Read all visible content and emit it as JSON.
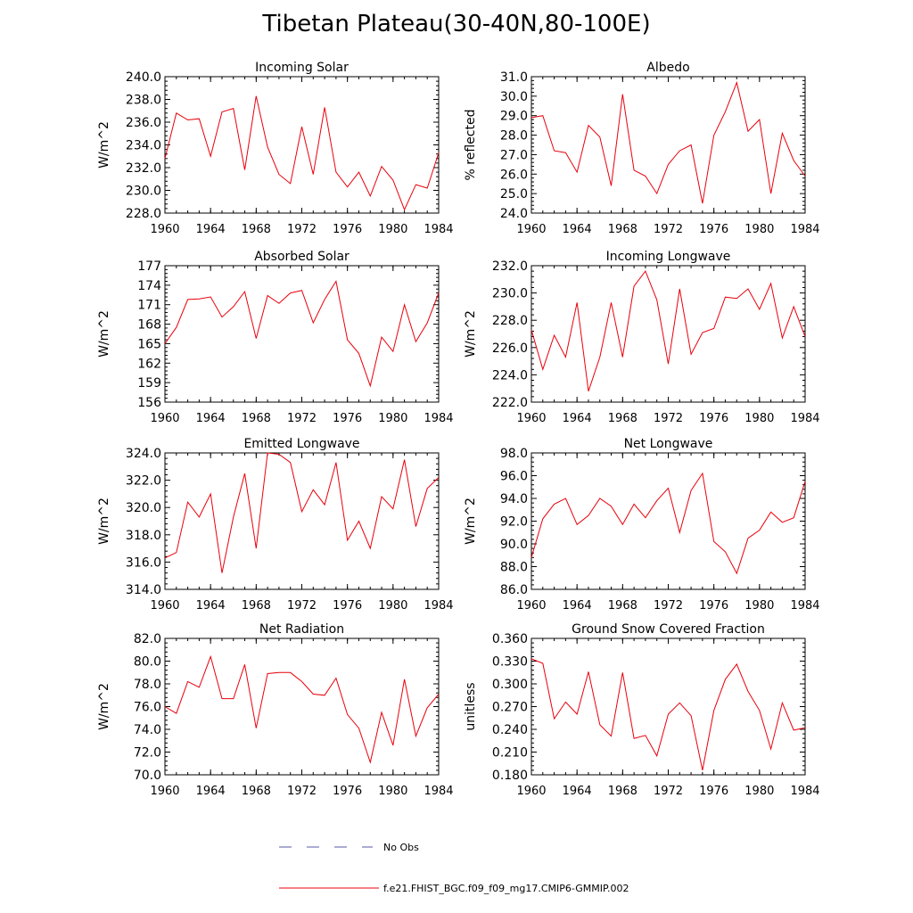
{
  "figure": {
    "title": "Tibetan Plateau(30-40N,80-100E)",
    "line_color": "#e8000b",
    "obs_color": "#5a5aa8"
  },
  "legend": {
    "obs_label": "No Obs",
    "model_label": "f.e21.FHIST_BGC.f09_f09_mg17.CMIP6-GMMIP.002"
  },
  "chart_data": [
    {
      "type": "line",
      "title": "Incoming Solar",
      "ylabel": "W/m^2",
      "xlim": [
        1960,
        1984
      ],
      "xticks": [
        "1960",
        "1964",
        "1968",
        "1972",
        "1976",
        "1980",
        "1984"
      ],
      "ylim": [
        228,
        240
      ],
      "yticks": [
        "228.0",
        "230.0",
        "232.0",
        "234.0",
        "236.0",
        "238.0",
        "240.0"
      ],
      "x": [
        1960,
        1961,
        1962,
        1963,
        1964,
        1965,
        1966,
        1967,
        1968,
        1969,
        1970,
        1971,
        1972,
        1973,
        1974,
        1975,
        1976,
        1977,
        1978,
        1979,
        1980,
        1981,
        1982,
        1983,
        1984
      ],
      "values": [
        232.8,
        236.8,
        236.2,
        236.3,
        233.0,
        236.9,
        237.2,
        231.8,
        238.3,
        233.8,
        231.4,
        230.6,
        235.6,
        231.4,
        237.3,
        231.6,
        230.3,
        231.6,
        229.5,
        232.1,
        230.9,
        228.3,
        230.5,
        230.2,
        233.3
      ]
    },
    {
      "type": "line",
      "title": "Albedo",
      "ylabel": "% reflected",
      "xlim": [
        1960,
        1984
      ],
      "xticks": [
        "1960",
        "1964",
        "1968",
        "1972",
        "1976",
        "1980",
        "1984"
      ],
      "ylim": [
        24,
        31
      ],
      "yticks": [
        "24.0",
        "25.0",
        "26.0",
        "27.0",
        "28.0",
        "29.0",
        "30.0",
        "31.0"
      ],
      "x": [
        1960,
        1961,
        1962,
        1963,
        1964,
        1965,
        1966,
        1967,
        1968,
        1969,
        1970,
        1971,
        1972,
        1973,
        1974,
        1975,
        1976,
        1977,
        1978,
        1979,
        1980,
        1981,
        1982,
        1983,
        1984
      ],
      "values": [
        28.9,
        29.0,
        27.2,
        27.1,
        26.1,
        28.5,
        27.9,
        25.4,
        30.1,
        26.2,
        25.9,
        25.0,
        26.5,
        27.2,
        27.5,
        24.5,
        28.0,
        29.2,
        30.7,
        28.2,
        28.8,
        25.0,
        28.1,
        26.7,
        25.9
      ]
    },
    {
      "type": "line",
      "title": "Absorbed Solar",
      "ylabel": "W/m^2",
      "xlim": [
        1960,
        1984
      ],
      "xticks": [
        "1960",
        "1964",
        "1968",
        "1972",
        "1976",
        "1980",
        "1984"
      ],
      "ylim": [
        156,
        177
      ],
      "yticks": [
        "156",
        "159",
        "162",
        "165",
        "168",
        "171",
        "174",
        "177"
      ],
      "x": [
        1960,
        1961,
        1962,
        1963,
        1964,
        1965,
        1966,
        1967,
        1968,
        1969,
        1970,
        1971,
        1972,
        1973,
        1974,
        1975,
        1976,
        1977,
        1978,
        1979,
        1980,
        1981,
        1982,
        1983,
        1984
      ],
      "values": [
        165.0,
        167.5,
        171.8,
        171.9,
        172.2,
        169.1,
        170.7,
        173.0,
        165.8,
        172.4,
        171.2,
        172.8,
        173.2,
        168.2,
        171.8,
        174.6,
        165.6,
        163.5,
        158.5,
        166.0,
        163.8,
        171.0,
        165.3,
        168.2,
        172.8
      ]
    },
    {
      "type": "line",
      "title": "Incoming Longwave",
      "ylabel": "W/m^2",
      "xlim": [
        1960,
        1984
      ],
      "xticks": [
        "1960",
        "1964",
        "1968",
        "1972",
        "1976",
        "1980",
        "1984"
      ],
      "ylim": [
        222,
        232
      ],
      "yticks": [
        "222.0",
        "224.0",
        "226.0",
        "228.0",
        "230.0",
        "232.0"
      ],
      "x": [
        1960,
        1961,
        1962,
        1963,
        1964,
        1965,
        1966,
        1967,
        1968,
        1969,
        1970,
        1971,
        1972,
        1973,
        1974,
        1975,
        1976,
        1977,
        1978,
        1979,
        1980,
        1981,
        1982,
        1983,
        1984
      ],
      "values": [
        227.3,
        224.4,
        226.9,
        225.3,
        229.3,
        222.8,
        225.3,
        229.3,
        225.3,
        230.5,
        231.6,
        229.5,
        224.8,
        230.3,
        225.5,
        227.1,
        227.4,
        229.7,
        229.6,
        230.3,
        228.8,
        230.7,
        226.7,
        229.0,
        226.8
      ]
    },
    {
      "type": "line",
      "title": "Emitted Longwave",
      "ylabel": "W/m^2",
      "xlim": [
        1960,
        1984
      ],
      "xticks": [
        "1960",
        "1964",
        "1968",
        "1972",
        "1976",
        "1980",
        "1984"
      ],
      "ylim": [
        314,
        324
      ],
      "yticks": [
        "314.0",
        "316.0",
        "318.0",
        "320.0",
        "322.0",
        "324.0"
      ],
      "x": [
        1960,
        1961,
        1962,
        1963,
        1964,
        1965,
        1966,
        1967,
        1968,
        1969,
        1970,
        1971,
        1972,
        1973,
        1974,
        1975,
        1976,
        1977,
        1978,
        1979,
        1980,
        1981,
        1982,
        1983,
        1984
      ],
      "values": [
        316.3,
        316.7,
        320.4,
        319.3,
        321.0,
        315.2,
        319.3,
        322.5,
        317.0,
        324.0,
        323.9,
        323.3,
        319.7,
        321.3,
        320.2,
        323.3,
        317.6,
        319.0,
        317.0,
        320.8,
        319.9,
        323.5,
        318.6,
        321.4,
        322.2
      ]
    },
    {
      "type": "line",
      "title": "Net Longwave",
      "ylabel": "W/m^2",
      "xlim": [
        1960,
        1984
      ],
      "xticks": [
        "1960",
        "1964",
        "1968",
        "1972",
        "1976",
        "1980",
        "1984"
      ],
      "ylim": [
        86,
        98
      ],
      "yticks": [
        "86.0",
        "88.0",
        "90.0",
        "92.0",
        "94.0",
        "96.0",
        "98.0"
      ],
      "x": [
        1960,
        1961,
        1962,
        1963,
        1964,
        1965,
        1966,
        1967,
        1968,
        1969,
        1970,
        1971,
        1972,
        1973,
        1974,
        1975,
        1976,
        1977,
        1978,
        1979,
        1980,
        1981,
        1982,
        1983,
        1984
      ],
      "values": [
        88.8,
        92.2,
        93.5,
        94.0,
        91.7,
        92.5,
        94.0,
        93.3,
        91.7,
        93.5,
        92.3,
        93.8,
        94.9,
        91.0,
        94.7,
        96.2,
        90.2,
        89.3,
        87.4,
        90.5,
        91.2,
        92.8,
        91.9,
        92.3,
        95.5
      ]
    },
    {
      "type": "line",
      "title": "Net Radiation",
      "ylabel": "W/m^2",
      "xlim": [
        1960,
        1984
      ],
      "xticks": [
        "1960",
        "1964",
        "1968",
        "1972",
        "1976",
        "1980",
        "1984"
      ],
      "ylim": [
        70,
        82
      ],
      "yticks": [
        "70.0",
        "72.0",
        "74.0",
        "76.0",
        "78.0",
        "80.0",
        "82.0"
      ],
      "x": [
        1960,
        1961,
        1962,
        1963,
        1964,
        1965,
        1966,
        1967,
        1968,
        1969,
        1970,
        1971,
        1972,
        1973,
        1974,
        1975,
        1976,
        1977,
        1978,
        1979,
        1980,
        1981,
        1982,
        1983,
        1984
      ],
      "values": [
        76.0,
        75.4,
        78.2,
        77.7,
        80.4,
        76.7,
        76.7,
        79.7,
        74.1,
        78.9,
        79.0,
        79.0,
        78.2,
        77.1,
        77.0,
        78.5,
        75.3,
        74.1,
        71.1,
        75.5,
        72.6,
        78.4,
        73.4,
        75.9,
        77.1
      ]
    },
    {
      "type": "line",
      "title": "Ground Snow Covered Fraction",
      "ylabel": "unitless",
      "xlim": [
        1960,
        1984
      ],
      "xticks": [
        "1960",
        "1964",
        "1968",
        "1972",
        "1976",
        "1980",
        "1984"
      ],
      "ylim": [
        0.18,
        0.36
      ],
      "yticks": [
        "0.180",
        "0.210",
        "0.240",
        "0.270",
        "0.300",
        "0.330",
        "0.360"
      ],
      "x": [
        1960,
        1961,
        1962,
        1963,
        1964,
        1965,
        1966,
        1967,
        1968,
        1969,
        1970,
        1971,
        1972,
        1973,
        1974,
        1975,
        1976,
        1977,
        1978,
        1979,
        1980,
        1981,
        1982,
        1983,
        1984
      ],
      "values": [
        0.333,
        0.327,
        0.254,
        0.276,
        0.26,
        0.316,
        0.246,
        0.231,
        0.315,
        0.228,
        0.232,
        0.205,
        0.26,
        0.275,
        0.258,
        0.186,
        0.265,
        0.306,
        0.326,
        0.29,
        0.265,
        0.214,
        0.275,
        0.239,
        0.242
      ]
    }
  ]
}
